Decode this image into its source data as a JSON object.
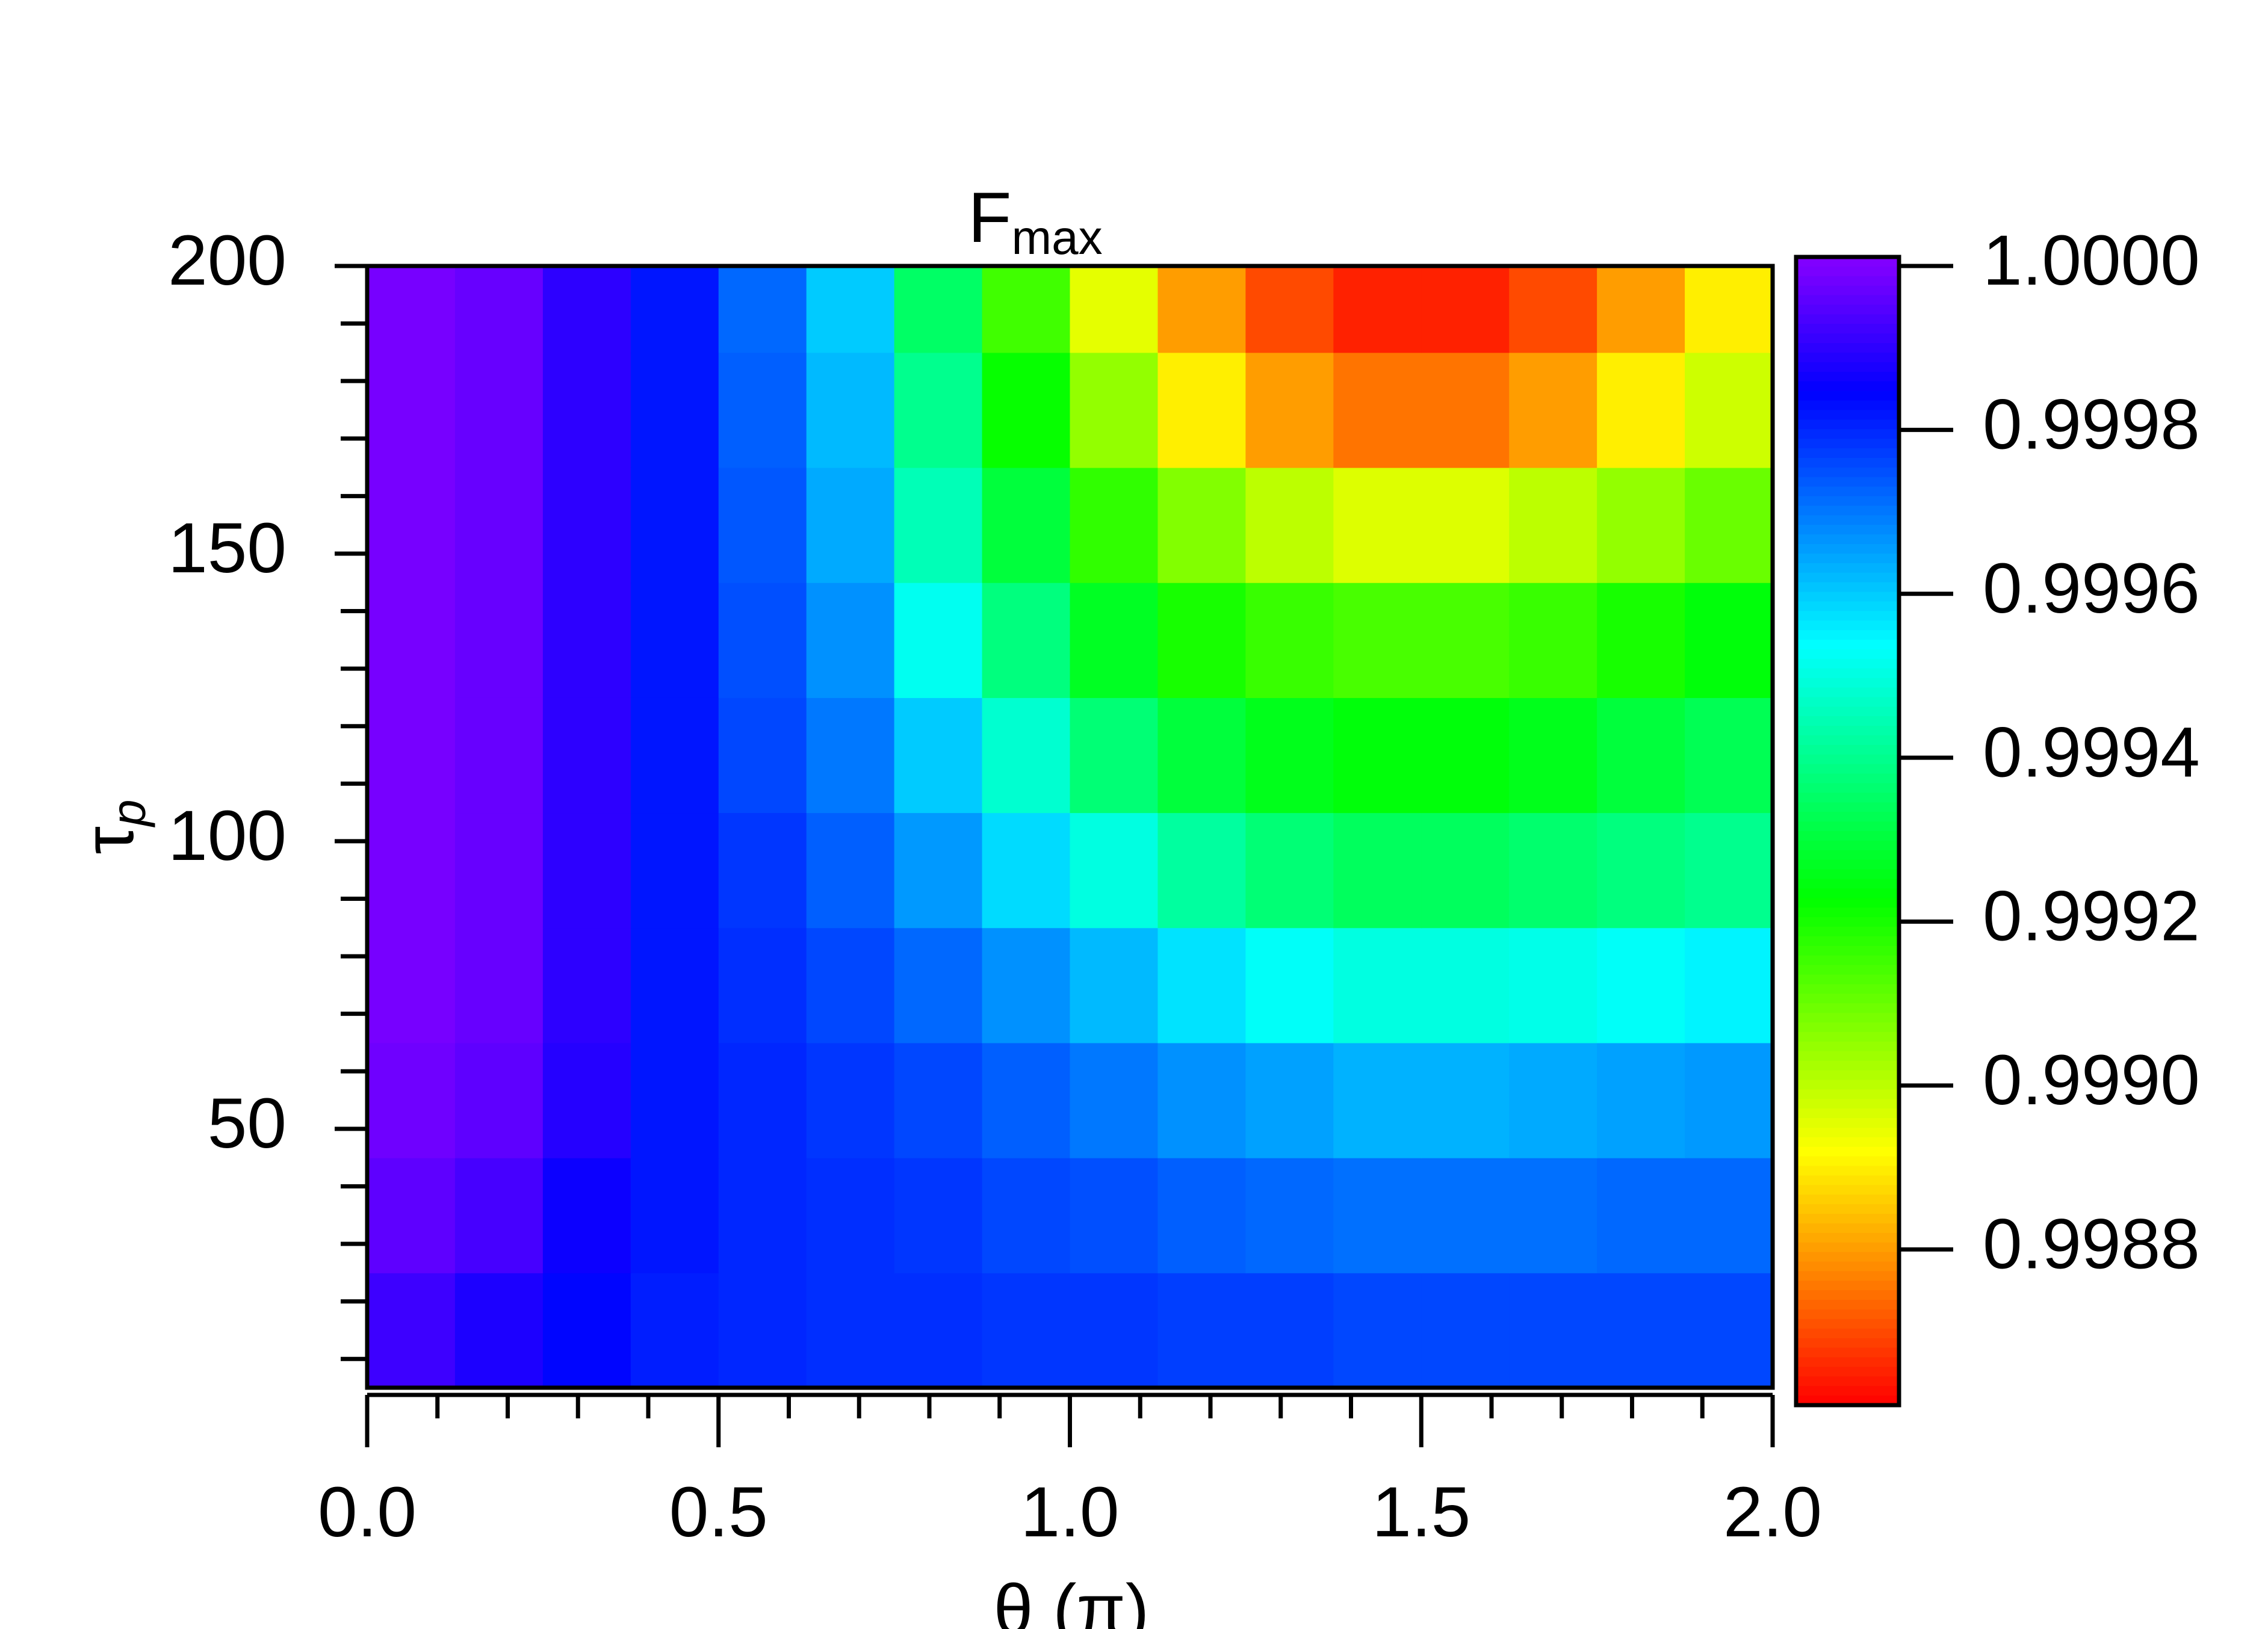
{
  "chart_data": {
    "type": "heatmap",
    "title": "F",
    "title_sub": "max",
    "xlabel": "θ (π)",
    "ylabel": "τ",
    "ylabel_sub": "p",
    "colormap": "rainbow",
    "x": [
      0.0625,
      0.1875,
      0.3125,
      0.4375,
      0.5625,
      0.6875,
      0.8125,
      0.9375,
      1.0625,
      1.1875,
      1.3125,
      1.4375,
      1.5625,
      1.6875,
      1.8125,
      1.9375
    ],
    "y": [
      15,
      35,
      55,
      75,
      95,
      115,
      135,
      155,
      175,
      195
    ],
    "z": [
      [
        0.99992,
        0.99988,
        0.99984,
        0.99981,
        0.9998,
        0.99979,
        0.99979,
        0.99978,
        0.99978,
        0.99977,
        0.99977,
        0.99976,
        0.99976,
        0.99976,
        0.99976,
        0.99976
      ],
      [
        0.99996,
        0.99993,
        0.99986,
        0.99982,
        0.9998,
        0.99979,
        0.99978,
        0.99976,
        0.99975,
        0.99973,
        0.99972,
        0.99971,
        0.99971,
        0.99971,
        0.99972,
        0.99972
      ],
      [
        0.99998,
        0.99996,
        0.99989,
        0.99982,
        0.9998,
        0.99978,
        0.99976,
        0.99973,
        0.9997,
        0.99967,
        0.99965,
        0.99963,
        0.99963,
        0.99964,
        0.99965,
        0.99966
      ],
      [
        0.99999,
        0.99997,
        0.9999,
        0.99982,
        0.99979,
        0.99976,
        0.99972,
        0.99967,
        0.99962,
        0.99957,
        0.99953,
        0.9995,
        0.9995,
        0.99951,
        0.99953,
        0.99955
      ],
      [
        0.99999,
        0.99997,
        0.9999,
        0.99982,
        0.99978,
        0.99973,
        0.99966,
        0.99958,
        0.9995,
        0.99942,
        0.99937,
        0.99934,
        0.99934,
        0.99936,
        0.99938,
        0.9994
      ],
      [
        0.99999,
        0.99997,
        0.9999,
        0.99982,
        0.99976,
        0.9997,
        0.9996,
        0.99948,
        0.99937,
        0.9993,
        0.99926,
        0.99924,
        0.99924,
        0.99926,
        0.9993,
        0.99933
      ],
      [
        0.99999,
        0.99997,
        0.9999,
        0.99982,
        0.99975,
        0.99967,
        0.99952,
        0.99938,
        0.99927,
        0.9992,
        0.99916,
        0.99914,
        0.99914,
        0.99916,
        0.9992,
        0.99924
      ],
      [
        0.99999,
        0.99997,
        0.9999,
        0.99982,
        0.99974,
        0.99964,
        0.99945,
        0.9993,
        0.99917,
        0.99907,
        0.999,
        0.99896,
        0.99896,
        0.999,
        0.99905,
        0.9991
      ],
      [
        0.99999,
        0.99997,
        0.9999,
        0.99982,
        0.99973,
        0.99962,
        0.9994,
        0.99922,
        0.99905,
        0.9989,
        0.9988,
        0.99875,
        0.99875,
        0.9988,
        0.9989,
        0.99898
      ],
      [
        0.99999,
        0.99997,
        0.9999,
        0.99982,
        0.99972,
        0.9996,
        0.99935,
        0.99915,
        0.99895,
        0.9988,
        0.9987,
        0.99865,
        0.99865,
        0.9987,
        0.9988,
        0.9989
      ]
    ],
    "xlim": [
      0,
      2
    ],
    "xticks": [
      {
        "value": 0,
        "label": "0.0"
      },
      0.5,
      {
        "value": 1,
        "label": "1.0"
      },
      1.5,
      {
        "value": 2,
        "label": "2.0"
      }
    ],
    "xminorticks": [
      0.1,
      0.2,
      0.3,
      0.4,
      0.6,
      0.7,
      0.8,
      0.9,
      1.1,
      1.2,
      1.3,
      1.4,
      1.6,
      1.7,
      1.8,
      1.9
    ],
    "ylim": [
      5,
      200
    ],
    "yticks": [
      50,
      100,
      150,
      200
    ],
    "yminorticks": [
      10,
      20,
      30,
      40,
      60,
      70,
      80,
      90,
      110,
      120,
      130,
      140,
      160,
      170,
      180,
      190
    ],
    "colorbar": {
      "ylim": [
        0.99861,
        1
      ],
      "yticks": [
        {
          "value": 1,
          "label": "1.0000"
        },
        0.9998,
        0.9996,
        0.9994,
        0.9992,
        {
          "value": 0.999,
          "label": "0.9990"
        },
        0.9988
      ]
    }
  }
}
